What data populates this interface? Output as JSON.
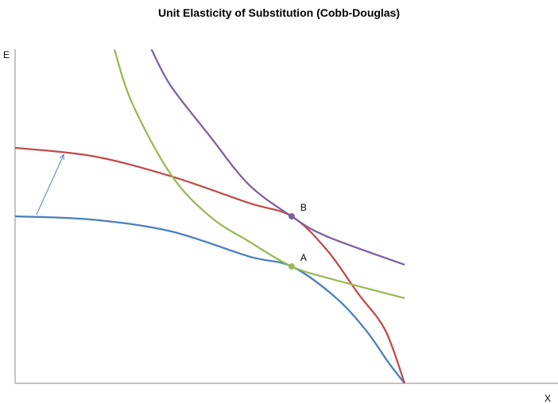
{
  "chart_data": {
    "type": "line",
    "title": "Unit Elasticity of Substitution (Cobb-Douglas)",
    "xlabel": "X",
    "ylabel": "E",
    "xlim": [
      0,
      100
    ],
    "ylim": [
      0,
      100
    ],
    "grid": false,
    "ticks": false,
    "series": [
      {
        "id": "ppf-initial",
        "color": "#4a7ebb",
        "points": [
          [
            0,
            50
          ],
          [
            20,
            49
          ],
          [
            40,
            45.5
          ],
          [
            60,
            38
          ],
          [
            71,
            35
          ],
          [
            82,
            26
          ],
          [
            90,
            16
          ],
          [
            96,
            6
          ],
          [
            100,
            0
          ]
        ]
      },
      {
        "id": "ppf-expanded",
        "color": "#be4b48",
        "points": [
          [
            0,
            70.5
          ],
          [
            20,
            68
          ],
          [
            40,
            62
          ],
          [
            60,
            54
          ],
          [
            71,
            50
          ],
          [
            80,
            40
          ],
          [
            88,
            27
          ],
          [
            95,
            16
          ],
          [
            100,
            0
          ]
        ]
      },
      {
        "id": "isoquant-low",
        "color": "#98b954",
        "points": [
          [
            25.5,
            100
          ],
          [
            30,
            84
          ],
          [
            40,
            62.5
          ],
          [
            50,
            50
          ],
          [
            60,
            42.5
          ],
          [
            71,
            35
          ],
          [
            82,
            31
          ],
          [
            100,
            25.5
          ]
        ]
      },
      {
        "id": "isoquant-high",
        "color": "#7d60a0",
        "points": [
          [
            35,
            100
          ],
          [
            40,
            89
          ],
          [
            50,
            74
          ],
          [
            60,
            59.5
          ],
          [
            71,
            50
          ],
          [
            80,
            44
          ],
          [
            100,
            35.5
          ]
        ]
      }
    ],
    "points": [
      {
        "label": "A",
        "x": 71,
        "y": 35,
        "color": "#98b954"
      },
      {
        "label": "B",
        "x": 71,
        "y": 50,
        "color": "#7d60a0"
      }
    ],
    "arrow": {
      "color": "#4a7ebb",
      "from": [
        5.5,
        50.5
      ],
      "to": [
        12.5,
        68.5
      ]
    }
  }
}
